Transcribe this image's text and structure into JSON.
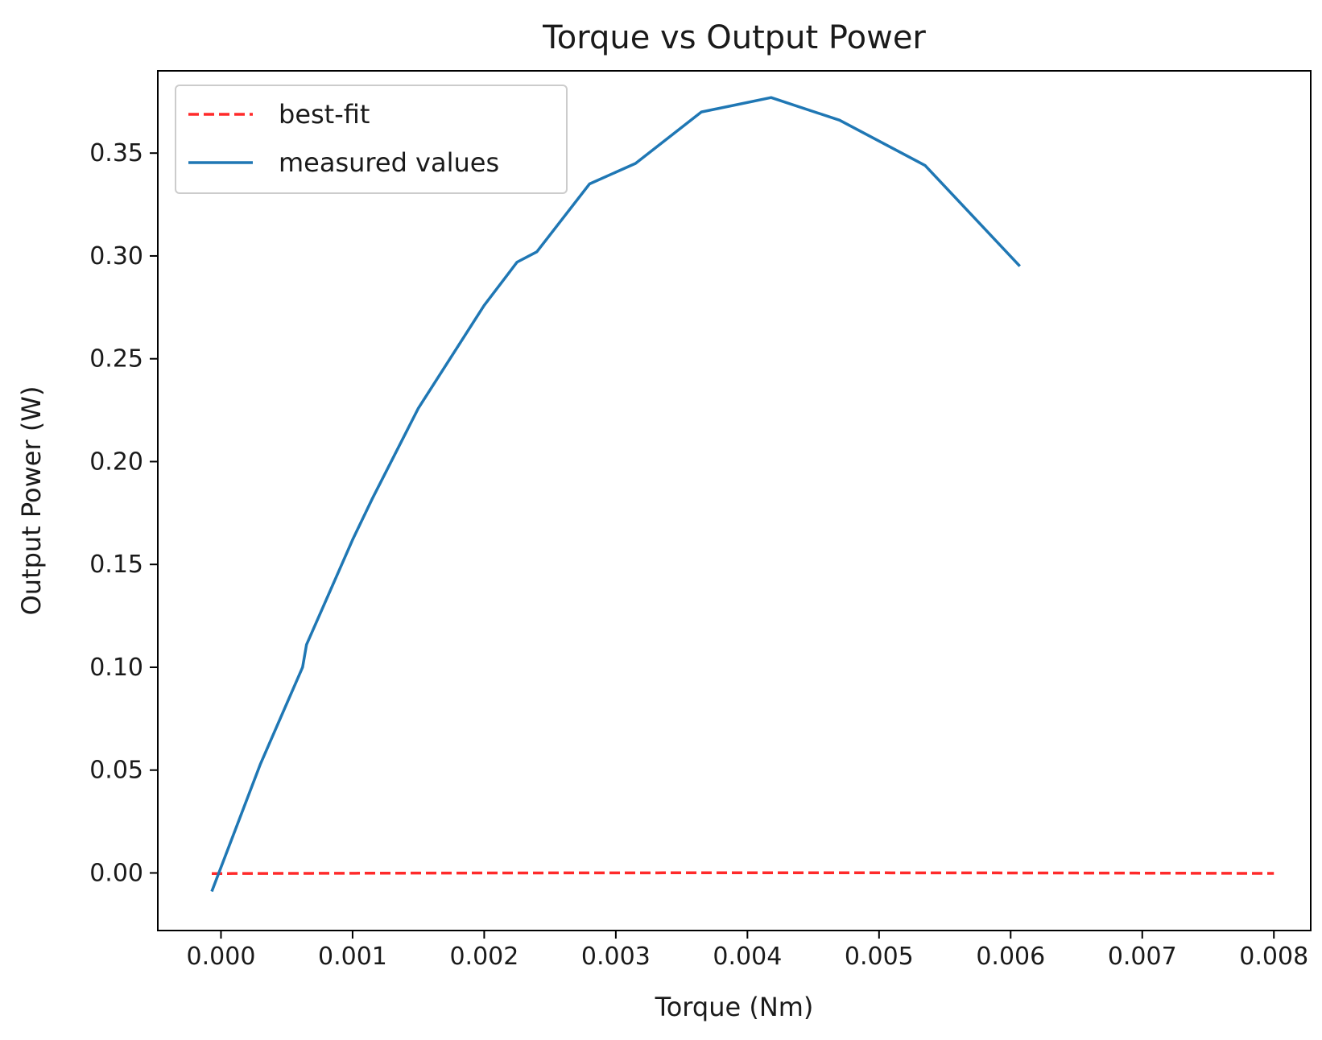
{
  "chart_data": {
    "type": "line",
    "title": "Torque vs Output Power",
    "xlabel": "Torque (Nm)",
    "ylabel": "Output Power (W)",
    "xlim": [
      -0.00048,
      0.00828
    ],
    "ylim": [
      -0.028,
      0.39
    ],
    "xticks": [
      0.0,
      0.001,
      0.002,
      0.003,
      0.004,
      0.005,
      0.006,
      0.007,
      0.008
    ],
    "xtick_labels": [
      "0.000",
      "0.001",
      "0.002",
      "0.003",
      "0.004",
      "0.005",
      "0.006",
      "0.007",
      "0.008"
    ],
    "yticks": [
      0.0,
      0.05,
      0.1,
      0.15,
      0.2,
      0.25,
      0.3,
      0.35
    ],
    "ytick_labels": [
      "0.00",
      "0.05",
      "0.10",
      "0.15",
      "0.20",
      "0.25",
      "0.30",
      "0.35"
    ],
    "grid": false,
    "legend_position": "top-left",
    "series": [
      {
        "name": "best-fit",
        "style": "dashed",
        "color": "#ff2a2a",
        "fit": {
          "a": -21.0,
          "b": 0.1768,
          "c": -0.0003,
          "x_start": -7e-05,
          "x_end": 0.008
        }
      },
      {
        "name": "measured values",
        "style": "solid",
        "color": "#1f77b4",
        "x": [
          -7e-05,
          0.0003,
          0.00062,
          0.00065,
          0.001,
          0.00115,
          0.0015,
          0.002,
          0.00225,
          0.0024,
          0.0028,
          0.00315,
          0.00365,
          0.00418,
          0.0047,
          0.00535,
          0.00607
        ],
        "y": [
          -0.009,
          0.053,
          0.1,
          0.111,
          0.162,
          0.182,
          0.226,
          0.276,
          0.297,
          0.302,
          0.335,
          0.345,
          0.37,
          0.377,
          0.366,
          0.344,
          0.295
        ]
      }
    ]
  }
}
